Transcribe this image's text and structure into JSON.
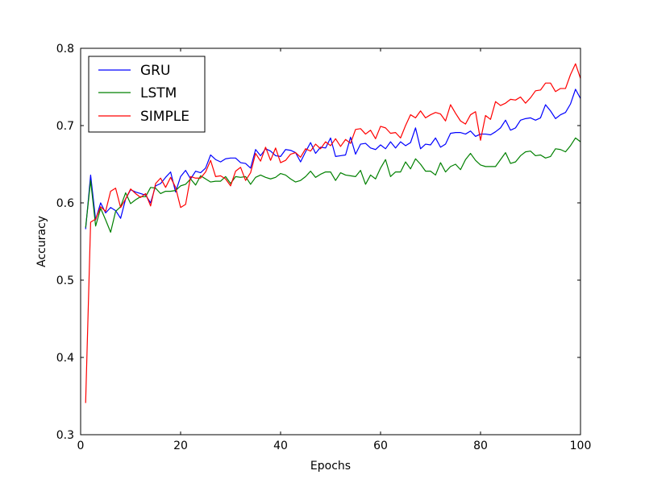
{
  "chart_data": {
    "type": "line",
    "title": "",
    "xlabel": "Epochs",
    "ylabel": "Accuracy",
    "xlim": [
      0,
      100
    ],
    "ylim": [
      0.3,
      0.8
    ],
    "xticks": [
      0,
      20,
      40,
      60,
      80,
      100
    ],
    "xtick_labels": [
      "0",
      "20",
      "40",
      "60",
      "80",
      "100"
    ],
    "yticks": [
      0.3,
      0.4,
      0.5,
      0.6,
      0.7,
      0.8
    ],
    "ytick_labels": [
      "0.3",
      "0.4",
      "0.5",
      "0.6",
      "0.7",
      "0.8"
    ],
    "grid": false,
    "legend_position": "top-left",
    "x": [
      1,
      2,
      3,
      4,
      5,
      6,
      7,
      8,
      9,
      10,
      11,
      12,
      13,
      14,
      15,
      16,
      17,
      18,
      19,
      20,
      21,
      22,
      23,
      24,
      25,
      26,
      27,
      28,
      29,
      30,
      31,
      32,
      33,
      34,
      35,
      36,
      37,
      38,
      39,
      40,
      41,
      42,
      43,
      44,
      45,
      46,
      47,
      48,
      49,
      50,
      51,
      52,
      53,
      54,
      55,
      56,
      57,
      58,
      59,
      60,
      61,
      62,
      63,
      64,
      65,
      66,
      67,
      68,
      69,
      70,
      71,
      72,
      73,
      74,
      75,
      76,
      77,
      78,
      79,
      80,
      81,
      82,
      83,
      84,
      85,
      86,
      87,
      88,
      89,
      90,
      91,
      92,
      93,
      94,
      95,
      96,
      97,
      98,
      99,
      100
    ],
    "series": [
      {
        "name": "GRU",
        "color": "#0000ff",
        "values": [
          0.566,
          0.636,
          0.578,
          0.6,
          0.587,
          0.594,
          0.59,
          0.58,
          0.605,
          0.617,
          0.614,
          0.612,
          0.61,
          0.6,
          0.622,
          0.625,
          0.633,
          0.64,
          0.614,
          0.634,
          0.642,
          0.631,
          0.641,
          0.639,
          0.645,
          0.662,
          0.656,
          0.653,
          0.657,
          0.658,
          0.658,
          0.652,
          0.651,
          0.645,
          0.669,
          0.661,
          0.67,
          0.667,
          0.661,
          0.66,
          0.669,
          0.668,
          0.665,
          0.653,
          0.666,
          0.678,
          0.664,
          0.672,
          0.671,
          0.684,
          0.66,
          0.661,
          0.662,
          0.685,
          0.663,
          0.676,
          0.677,
          0.671,
          0.669,
          0.675,
          0.67,
          0.679,
          0.671,
          0.679,
          0.674,
          0.678,
          0.697,
          0.67,
          0.676,
          0.675,
          0.684,
          0.672,
          0.676,
          0.69,
          0.691,
          0.691,
          0.689,
          0.693,
          0.686,
          0.689,
          0.689,
          0.688,
          0.692,
          0.697,
          0.707,
          0.694,
          0.697,
          0.707,
          0.709,
          0.71,
          0.707,
          0.71,
          0.727,
          0.719,
          0.709,
          0.714,
          0.717,
          0.728,
          0.747,
          0.735
        ]
      },
      {
        "name": "LSTM",
        "color": "#008000",
        "values": [
          0.568,
          0.629,
          0.57,
          0.593,
          0.578,
          0.562,
          0.589,
          0.595,
          0.613,
          0.599,
          0.604,
          0.608,
          0.608,
          0.62,
          0.619,
          0.612,
          0.615,
          0.615,
          0.616,
          0.622,
          0.624,
          0.631,
          0.623,
          0.635,
          0.631,
          0.627,
          0.628,
          0.628,
          0.634,
          0.625,
          0.634,
          0.633,
          0.634,
          0.624,
          0.633,
          0.636,
          0.633,
          0.631,
          0.633,
          0.638,
          0.636,
          0.631,
          0.627,
          0.629,
          0.634,
          0.641,
          0.633,
          0.637,
          0.64,
          0.64,
          0.629,
          0.639,
          0.636,
          0.635,
          0.634,
          0.642,
          0.624,
          0.636,
          0.631,
          0.645,
          0.656,
          0.634,
          0.64,
          0.64,
          0.653,
          0.644,
          0.657,
          0.65,
          0.641,
          0.641,
          0.636,
          0.652,
          0.64,
          0.647,
          0.65,
          0.643,
          0.656,
          0.664,
          0.655,
          0.649,
          0.647,
          0.647,
          0.647,
          0.656,
          0.665,
          0.651,
          0.653,
          0.661,
          0.666,
          0.667,
          0.661,
          0.662,
          0.658,
          0.66,
          0.67,
          0.669,
          0.666,
          0.674,
          0.684,
          0.679
        ]
      },
      {
        "name": "SIMPLE",
        "color": "#ff0000",
        "values": [
          0.341,
          0.575,
          0.579,
          0.595,
          0.589,
          0.615,
          0.619,
          0.594,
          0.605,
          0.618,
          0.612,
          0.607,
          0.612,
          0.596,
          0.625,
          0.632,
          0.62,
          0.633,
          0.62,
          0.594,
          0.598,
          0.634,
          0.632,
          0.632,
          0.64,
          0.655,
          0.634,
          0.635,
          0.631,
          0.622,
          0.641,
          0.646,
          0.629,
          0.639,
          0.664,
          0.654,
          0.672,
          0.655,
          0.671,
          0.652,
          0.655,
          0.663,
          0.665,
          0.659,
          0.67,
          0.667,
          0.676,
          0.67,
          0.679,
          0.674,
          0.683,
          0.673,
          0.682,
          0.677,
          0.695,
          0.696,
          0.689,
          0.694,
          0.683,
          0.699,
          0.697,
          0.69,
          0.691,
          0.684,
          0.7,
          0.714,
          0.71,
          0.719,
          0.71,
          0.714,
          0.717,
          0.715,
          0.706,
          0.727,
          0.716,
          0.706,
          0.702,
          0.714,
          0.718,
          0.681,
          0.713,
          0.708,
          0.731,
          0.726,
          0.729,
          0.734,
          0.733,
          0.737,
          0.729,
          0.736,
          0.745,
          0.746,
          0.755,
          0.755,
          0.744,
          0.748,
          0.748,
          0.766,
          0.78,
          0.761
        ]
      }
    ]
  }
}
